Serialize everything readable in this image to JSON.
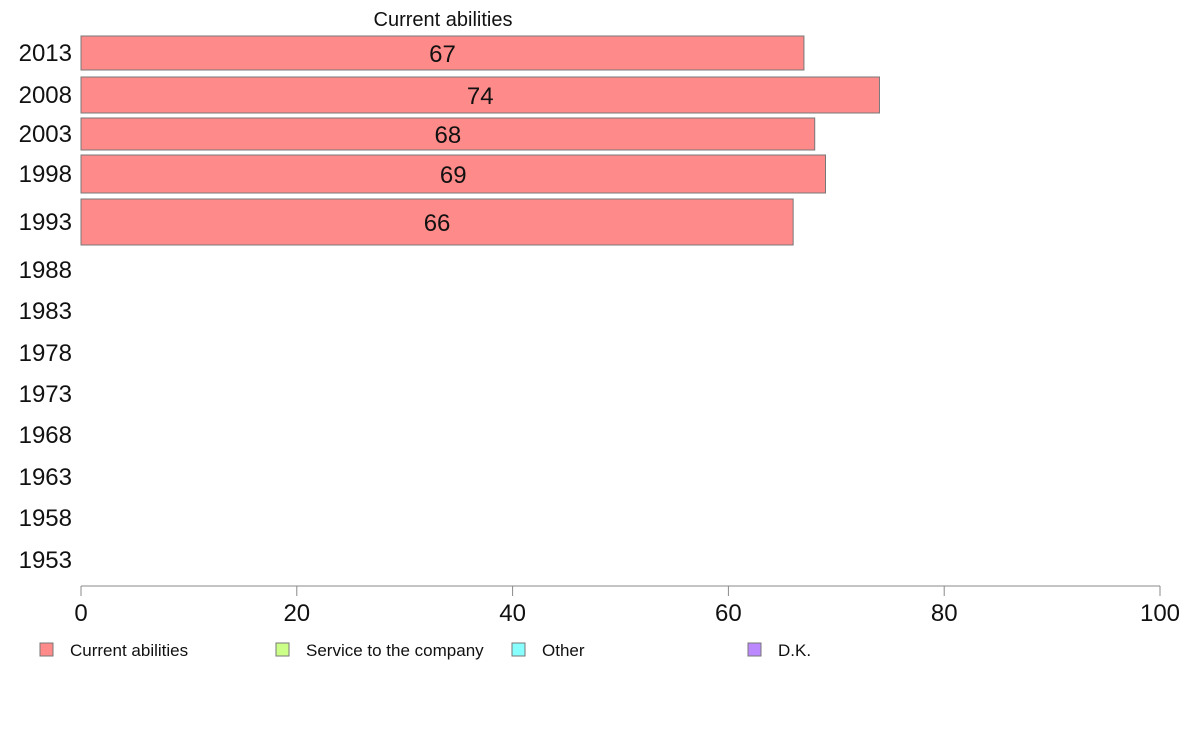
{
  "chart_data": {
    "type": "bar",
    "orientation": "horizontal",
    "title": "Current abilities",
    "categories": [
      "2013",
      "2008",
      "2003",
      "1998",
      "1993",
      "1988",
      "1983",
      "1978",
      "1973",
      "1968",
      "1963",
      "1958",
      "1953"
    ],
    "series": [
      {
        "name": "Current abilities",
        "color": "#ff8a8a",
        "values": [
          67,
          74,
          68,
          69,
          66,
          null,
          null,
          null,
          null,
          null,
          null,
          null,
          null
        ]
      }
    ],
    "xlim": [
      0,
      100
    ],
    "xticks": [
      0,
      20,
      40,
      60,
      80,
      100
    ],
    "grid": false,
    "legend_position": "bottom",
    "legend": [
      {
        "label": "Current abilities",
        "color": "#ff8a8a"
      },
      {
        "label": "Service to the company",
        "color": "#ccff88"
      },
      {
        "label": "Other",
        "color": "#88ffff"
      },
      {
        "label": "D.K.",
        "color": "#bb88ff"
      }
    ]
  }
}
